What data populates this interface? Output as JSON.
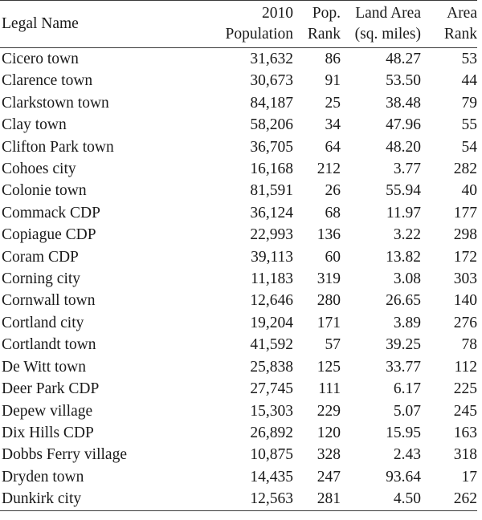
{
  "headers": {
    "name": "Legal Name",
    "pop_line1": "2010",
    "pop_line2": "Population",
    "prank_line1": "Pop.",
    "prank_line2": "Rank",
    "area_line1": "Land Area",
    "area_line2": "(sq. miles)",
    "arank_line1": "Area",
    "arank_line2": "Rank"
  },
  "rows": [
    {
      "name": "Cicero town",
      "pop": "31,632",
      "prank": "86",
      "area": "48.27",
      "arank": "53"
    },
    {
      "name": "Clarence town",
      "pop": "30,673",
      "prank": "91",
      "area": "53.50",
      "arank": "44"
    },
    {
      "name": "Clarkstown town",
      "pop": "84,187",
      "prank": "25",
      "area": "38.48",
      "arank": "79"
    },
    {
      "name": "Clay town",
      "pop": "58,206",
      "prank": "34",
      "area": "47.96",
      "arank": "55"
    },
    {
      "name": "Clifton Park town",
      "pop": "36,705",
      "prank": "64",
      "area": "48.20",
      "arank": "54"
    },
    {
      "name": "Cohoes city",
      "pop": "16,168",
      "prank": "212",
      "area": "3.77",
      "arank": "282"
    },
    {
      "name": "Colonie town",
      "pop": "81,591",
      "prank": "26",
      "area": "55.94",
      "arank": "40"
    },
    {
      "name": "Commack CDP",
      "pop": "36,124",
      "prank": "68",
      "area": "11.97",
      "arank": "177"
    },
    {
      "name": "Copiague CDP",
      "pop": "22,993",
      "prank": "136",
      "area": "3.22",
      "arank": "298"
    },
    {
      "name": "Coram CDP",
      "pop": "39,113",
      "prank": "60",
      "area": "13.82",
      "arank": "172"
    },
    {
      "name": "Corning city",
      "pop": "11,183",
      "prank": "319",
      "area": "3.08",
      "arank": "303"
    },
    {
      "name": "Cornwall town",
      "pop": "12,646",
      "prank": "280",
      "area": "26.65",
      "arank": "140"
    },
    {
      "name": "Cortland city",
      "pop": "19,204",
      "prank": "171",
      "area": "3.89",
      "arank": "276"
    },
    {
      "name": "Cortlandt town",
      "pop": "41,592",
      "prank": "57",
      "area": "39.25",
      "arank": "78"
    },
    {
      "name": "De Witt town",
      "pop": "25,838",
      "prank": "125",
      "area": "33.77",
      "arank": "112"
    },
    {
      "name": "Deer Park CDP",
      "pop": "27,745",
      "prank": "111",
      "area": "6.17",
      "arank": "225"
    },
    {
      "name": "Depew village",
      "pop": "15,303",
      "prank": "229",
      "area": "5.07",
      "arank": "245"
    },
    {
      "name": "Dix Hills CDP",
      "pop": "26,892",
      "prank": "120",
      "area": "15.95",
      "arank": "163"
    },
    {
      "name": "Dobbs Ferry village",
      "pop": "10,875",
      "prank": "328",
      "area": "2.43",
      "arank": "318"
    },
    {
      "name": "Dryden town",
      "pop": "14,435",
      "prank": "247",
      "area": "93.64",
      "arank": "17"
    },
    {
      "name": "Dunkirk city",
      "pop": "12,563",
      "prank": "281",
      "area": "4.50",
      "arank": "262"
    }
  ]
}
